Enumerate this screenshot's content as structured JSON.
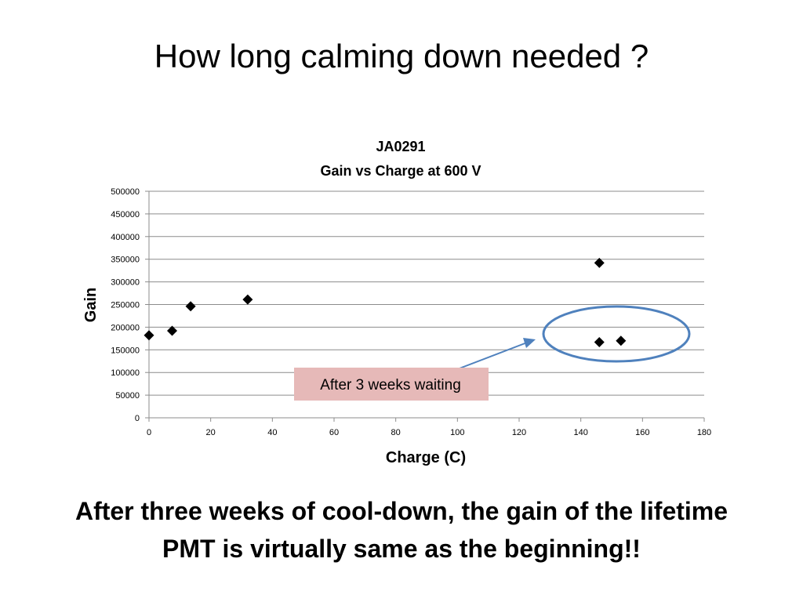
{
  "slide": {
    "title": "How long calming down needed ?",
    "conclusion_line1": "After three weeks of cool-down, the gain of the lifetime",
    "conclusion_line2": "PMT is virtually same as the beginning!!"
  },
  "chart_data": {
    "type": "scatter",
    "title": "JA0291",
    "subtitle": "Gain vs Charge at 600 V",
    "xlabel": "Charge (C)",
    "ylabel": "Gain",
    "xlim": [
      0,
      180
    ],
    "ylim": [
      0,
      500000
    ],
    "xticks": [
      0,
      20,
      40,
      60,
      80,
      100,
      120,
      140,
      160,
      180
    ],
    "yticks": [
      0,
      50000,
      100000,
      150000,
      200000,
      250000,
      300000,
      350000,
      400000,
      450000,
      500000
    ],
    "grid": "horizontal",
    "marker": "diamond",
    "marker_color": "#000000",
    "points": [
      {
        "x": 0,
        "y": 182000
      },
      {
        "x": 7.5,
        "y": 192000
      },
      {
        "x": 13.5,
        "y": 246000
      },
      {
        "x": 32,
        "y": 261000
      },
      {
        "x": 146,
        "y": 342000
      },
      {
        "x": 146,
        "y": 167000
      },
      {
        "x": 153,
        "y": 170000
      }
    ],
    "annotation": {
      "text": "After 3 weeks waiting",
      "box_color": "#e6b9b8",
      "arrow_color": "#4f81bd",
      "ellipse_color": "#4f81bd"
    }
  }
}
